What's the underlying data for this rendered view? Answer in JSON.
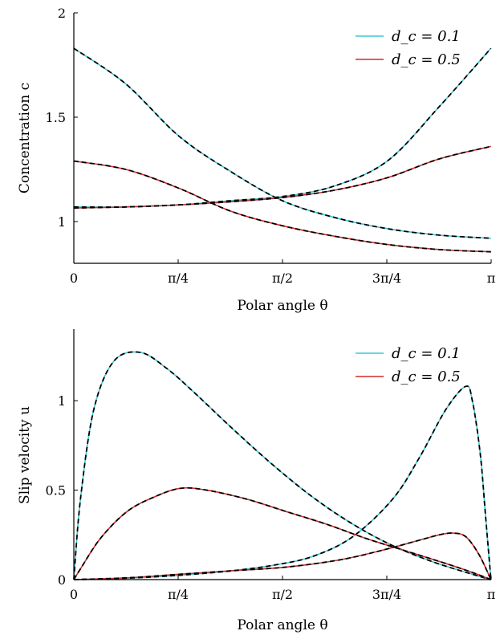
{
  "chart_data": [
    {
      "type": "line",
      "xlabel": "Polar angle θ",
      "ylabel": "Concentration c",
      "xlim": [
        0,
        3.14159
      ],
      "ylim": [
        0.8,
        2.0
      ],
      "xticks": [
        {
          "value": 0,
          "label": "0"
        },
        {
          "value": 0.7854,
          "label": "π/4"
        },
        {
          "value": 1.5708,
          "label": "π/2"
        },
        {
          "value": 2.3562,
          "label": "3π/4"
        },
        {
          "value": 3.14159,
          "label": "π"
        }
      ],
      "yticks": [
        {
          "value": 1,
          "label": "1"
        },
        {
          "value": 1.5,
          "label": "1.5"
        },
        {
          "value": 2,
          "label": "2"
        }
      ],
      "legend": {
        "position": "top-right"
      },
      "grid": false,
      "series": [
        {
          "name": "d_c = 0.1",
          "color": "#3cc8d4",
          "x": [
            0,
            0.39,
            0.79,
            1.18,
            1.57,
            1.96,
            2.36,
            2.75,
            3.14
          ],
          "y": [
            1.83,
            1.66,
            1.41,
            1.24,
            1.1,
            1.02,
            0.966,
            0.935,
            0.92
          ]
        },
        {
          "name": "",
          "color": "#3cc8d4",
          "x": [
            0,
            0.39,
            0.79,
            1.18,
            1.57,
            1.96,
            2.36,
            2.75,
            3.14
          ],
          "y": [
            1.07,
            1.07,
            1.08,
            1.1,
            1.12,
            1.17,
            1.29,
            1.55,
            1.83
          ]
        },
        {
          "name": "d_c = 0.5",
          "color": "#d42a2a",
          "x": [
            0,
            0.39,
            0.79,
            1.18,
            1.57,
            1.96,
            2.36,
            2.75,
            3.14
          ],
          "y": [
            1.29,
            1.25,
            1.16,
            1.05,
            0.98,
            0.93,
            0.89,
            0.866,
            0.855
          ]
        },
        {
          "name": "",
          "color": "#d42a2a",
          "x": [
            0,
            0.39,
            0.79,
            1.18,
            1.57,
            1.96,
            2.36,
            2.75,
            3.14
          ],
          "y": [
            1.065,
            1.07,
            1.08,
            1.095,
            1.115,
            1.15,
            1.21,
            1.3,
            1.36
          ]
        }
      ]
    },
    {
      "type": "line",
      "xlabel": "Polar angle θ",
      "ylabel": "Slip velocity u",
      "xlim": [
        0,
        3.14159
      ],
      "ylim": [
        0,
        1.4
      ],
      "xticks": [
        {
          "value": 0,
          "label": "0"
        },
        {
          "value": 0.7854,
          "label": "π/4"
        },
        {
          "value": 1.5708,
          "label": "π/2"
        },
        {
          "value": 2.3562,
          "label": "3π/4"
        },
        {
          "value": 3.14159,
          "label": "π"
        }
      ],
      "yticks": [
        {
          "value": 0,
          "label": "0"
        },
        {
          "value": 0.5,
          "label": "0.5"
        },
        {
          "value": 1,
          "label": "1"
        }
      ],
      "legend": {
        "position": "top-right"
      },
      "grid": false,
      "series": [
        {
          "name": "d_c = 0.1",
          "color": "#3cc8d4",
          "x": [
            0,
            0.05,
            0.15,
            0.3,
            0.5,
            0.7,
            0.9,
            1.2,
            1.5,
            1.8,
            2.1,
            2.4,
            2.7,
            3.0,
            3.14
          ],
          "y": [
            0,
            0.45,
            0.95,
            1.22,
            1.27,
            1.18,
            1.05,
            0.84,
            0.64,
            0.46,
            0.31,
            0.19,
            0.1,
            0.03,
            0.0
          ]
        },
        {
          "name": "",
          "color": "#3cc8d4",
          "x": [
            0,
            0.3,
            0.6,
            0.9,
            1.2,
            1.5,
            1.8,
            2.1,
            2.4,
            2.6,
            2.8,
            2.95,
            3.0,
            3.06,
            3.1,
            3.14
          ],
          "y": [
            0,
            0.005,
            0.015,
            0.03,
            0.05,
            0.08,
            0.13,
            0.24,
            0.45,
            0.68,
            0.95,
            1.08,
            1.0,
            0.7,
            0.35,
            0.0
          ]
        },
        {
          "name": "d_c = 0.5",
          "color": "#d42a2a",
          "x": [
            0,
            0.05,
            0.2,
            0.4,
            0.6,
            0.8,
            1.0,
            1.3,
            1.6,
            1.9,
            2.2,
            2.5,
            2.8,
            3.0,
            3.14
          ],
          "y": [
            0.0,
            0.06,
            0.23,
            0.38,
            0.46,
            0.51,
            0.5,
            0.45,
            0.38,
            0.31,
            0.23,
            0.16,
            0.09,
            0.04,
            0.0
          ]
        },
        {
          "name": "",
          "color": "#d42a2a",
          "x": [
            0,
            0.4,
            0.8,
            1.2,
            1.6,
            2.0,
            2.3,
            2.6,
            2.75,
            2.85,
            2.95,
            3.05,
            3.14
          ],
          "y": [
            0.0,
            0.01,
            0.03,
            0.05,
            0.07,
            0.11,
            0.16,
            0.22,
            0.25,
            0.26,
            0.24,
            0.14,
            0.0
          ]
        }
      ]
    }
  ]
}
